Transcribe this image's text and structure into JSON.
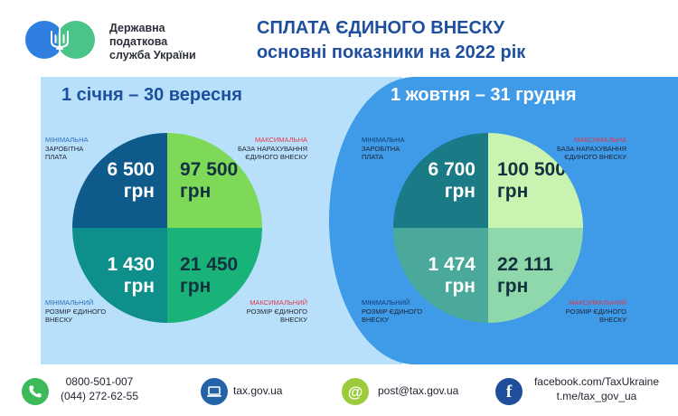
{
  "org": {
    "line1": "Державна",
    "line2": "податкова",
    "line3": "служба України"
  },
  "title": {
    "line1": "СПЛАТА ЄДИНОГО ВНЕСКУ",
    "line2": "основні показники на 2022 рік"
  },
  "colors": {
    "brand_blue": "#2f7fe0",
    "brand_green": "#4bc48a",
    "title_blue": "#1d4f9e",
    "label_red": "#e0394a",
    "left_bg": "#b9e0fb",
    "right_bg": "#3f9ae8"
  },
  "periods": [
    {
      "label": "1 січня – 30 вересня",
      "min_wage": {
        "label1": "МІНІМАЛЬНА",
        "label2": "ЗАРОБІТНА",
        "label3": "ПЛАТА",
        "value": "6 500",
        "unit": "грн",
        "color": "#0e5a8a"
      },
      "max_base": {
        "label1": "МАКСИМАЛЬНА",
        "label2": "БАЗА НАРАХУВАННЯ",
        "label3": "ЄДИНОГО ВНЕСКУ",
        "value": "97 500",
        "unit": "грн",
        "color": "#7dd957"
      },
      "min_contribution": {
        "label1": "МІНІМАЛЬНИЙ",
        "label2": "РОЗМІР ЄДИНОГО",
        "label3": "ВНЕСКУ",
        "value": "1 430",
        "unit": "грн",
        "color": "#0e8f8c"
      },
      "max_contribution": {
        "label1": "МАКСИМАЛЬНИЙ",
        "label2": "РОЗМІР ЄДИНОГО",
        "label3": "ВНЕСКУ",
        "value": "21 450",
        "unit": "грн",
        "color": "#19b37a"
      }
    },
    {
      "label": "1 жовтня – 31 грудня",
      "min_wage": {
        "label1": "МІНІМАЛЬНА",
        "label2": "ЗАРОБІТНА",
        "label3": "ПЛАТА",
        "value": "6 700",
        "unit": "грн",
        "color": "#1a7a86"
      },
      "max_base": {
        "label1": "МАКСИМАЛЬНА",
        "label2": "БАЗА НАРАХУВАННЯ",
        "label3": "ЄДИНОГО ВНЕСКУ",
        "value": "100 500",
        "unit": "грн",
        "color": "#c9f3b0"
      },
      "min_contribution": {
        "label1": "МІНІМАЛЬНИЙ",
        "label2": "РОЗМІР ЄДИНОГО",
        "label3": "ВНЕСКУ",
        "value": "1 474",
        "unit": "грн",
        "color": "#4aa99a"
      },
      "max_contribution": {
        "label1": "МАКСИМАЛЬНИЙ",
        "label2": "РОЗМІР ЄДИНОГО",
        "label3": "ВНЕСКУ",
        "value": "22 111",
        "unit": "грн",
        "color": "#8ed8ab"
      }
    }
  ],
  "footer": {
    "phone1": "0800-501-007",
    "phone2": "(044) 272-62-55",
    "website": "tax.gov.ua",
    "email": "post@tax.gov.ua",
    "facebook": "facebook.com/TaxUkraine",
    "telegram": "t.me/tax_gov_ua",
    "icons": {
      "phone": "phone-icon",
      "web": "laptop-icon",
      "email": "at-icon",
      "facebook": "facebook-icon"
    }
  }
}
